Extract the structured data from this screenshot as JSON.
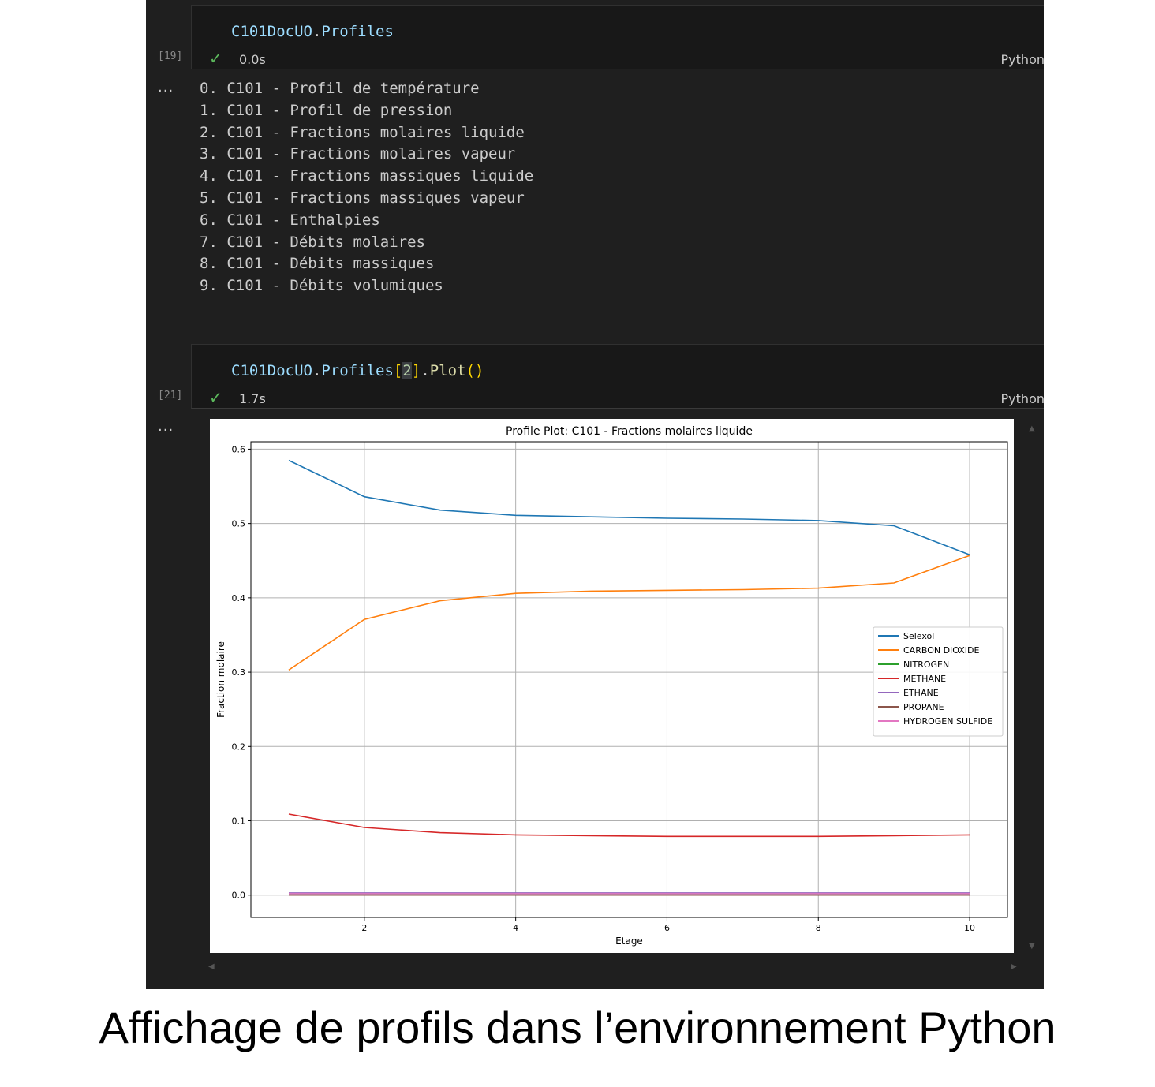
{
  "cells": [
    {
      "execution_count": "[19]",
      "code": {
        "object": "C101DocUO",
        "dot": ".",
        "property": "Profiles"
      },
      "status_icon": "check-icon",
      "timing": "0.0s",
      "kernel": "Python",
      "output_marker": "...",
      "output_lines": [
        "0. C101 - Profil de température",
        "1. C101 - Profil de pression",
        "2. C101 - Fractions molaires liquide",
        "3. C101 - Fractions molaires vapeur",
        "4. C101 - Fractions massiques liquide",
        "5. C101 - Fractions massiques vapeur",
        "6. C101 - Enthalpies",
        "7. C101 - Débits molaires",
        "8. C101 - Débits massiques",
        "9. C101 - Débits volumiques"
      ]
    },
    {
      "execution_count": "[21]",
      "code": {
        "object": "C101DocUO",
        "dot": ".",
        "property": "Profiles",
        "open_bracket": "[",
        "index": "2",
        "close_bracket": "]",
        "dot2": ".",
        "method": "Plot",
        "parens": "()"
      },
      "status_icon": "check-icon",
      "timing": "1.7s",
      "kernel": "Python",
      "output_marker": "..."
    }
  ],
  "chart_data": {
    "type": "line",
    "title": "Profile Plot: C101 - Fractions molaires liquide",
    "xlabel": "Etage",
    "ylabel": "Fraction molaire",
    "xlim": [
      0.5,
      10.5
    ],
    "ylim": [
      -0.03,
      0.61
    ],
    "xticks": [
      2,
      4,
      6,
      8,
      10
    ],
    "yticks": [
      0.0,
      0.1,
      0.2,
      0.3,
      0.4,
      0.5,
      0.6
    ],
    "ytick_labels": [
      "0.0",
      "0.1",
      "0.2",
      "0.3",
      "0.4",
      "0.5",
      "0.6"
    ],
    "grid": true,
    "legend_position": "center-right",
    "x": [
      1,
      2,
      3,
      4,
      5,
      6,
      7,
      8,
      9,
      10
    ],
    "series": [
      {
        "name": "Selexol",
        "color": "#1f77b4",
        "values": [
          0.585,
          0.536,
          0.518,
          0.511,
          0.509,
          0.507,
          0.506,
          0.504,
          0.497,
          0.458
        ]
      },
      {
        "name": "CARBON DIOXIDE",
        "color": "#ff7f0e",
        "values": [
          0.303,
          0.371,
          0.396,
          0.406,
          0.409,
          0.41,
          0.411,
          0.413,
          0.42,
          0.457
        ]
      },
      {
        "name": "NITROGEN",
        "color": "#2ca02c",
        "values": [
          0.001,
          0.001,
          0.001,
          0.001,
          0.001,
          0.001,
          0.001,
          0.001,
          0.001,
          0.001
        ]
      },
      {
        "name": "METHANE",
        "color": "#d62728",
        "values": [
          0.109,
          0.091,
          0.084,
          0.081,
          0.08,
          0.079,
          0.079,
          0.079,
          0.08,
          0.081
        ]
      },
      {
        "name": "ETHANE",
        "color": "#9467bd",
        "values": [
          0.003,
          0.003,
          0.003,
          0.003,
          0.003,
          0.003,
          0.003,
          0.003,
          0.003,
          0.003
        ]
      },
      {
        "name": "PROPANE",
        "color": "#8c564b",
        "values": [
          0.0,
          0.0,
          0.0,
          0.0,
          0.0,
          0.0,
          0.0,
          0.0,
          0.0,
          0.0
        ]
      },
      {
        "name": "HYDROGEN SULFIDE",
        "color": "#e377c2",
        "values": [
          0.002,
          0.002,
          0.002,
          0.002,
          0.002,
          0.002,
          0.002,
          0.002,
          0.002,
          0.002
        ]
      }
    ]
  },
  "caption": "Affichage de profils dans l’environnement Python"
}
